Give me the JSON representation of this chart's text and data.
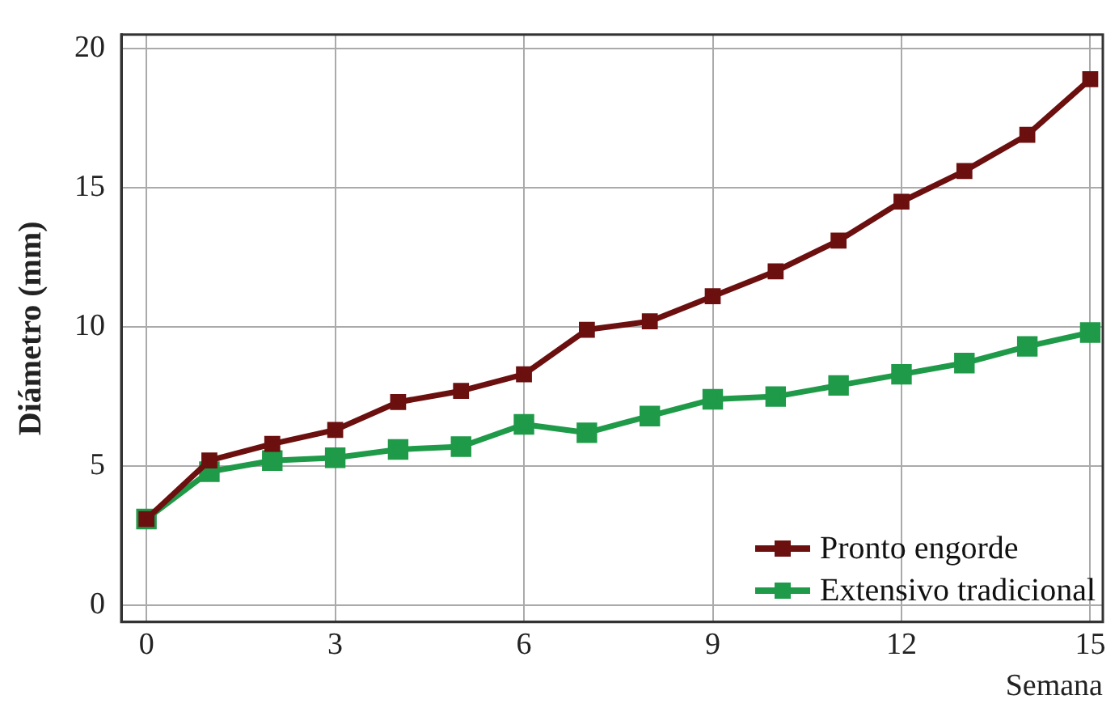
{
  "chart_data": {
    "type": "line",
    "xlabel": "Semana",
    "ylabel": "Diámetro (mm)",
    "x": [
      0,
      1,
      2,
      3,
      4,
      5,
      6,
      7,
      8,
      9,
      10,
      11,
      12,
      13,
      14,
      15
    ],
    "series": [
      {
        "name": "Pronto engorde",
        "color": "#6b0f0f",
        "values": [
          3.1,
          5.2,
          5.8,
          6.3,
          7.3,
          7.7,
          8.3,
          9.9,
          10.2,
          11.1,
          12.0,
          13.1,
          14.5,
          15.6,
          16.9,
          18.9
        ]
      },
      {
        "name": "Extensivo tradicional",
        "color": "#1e9a48",
        "values": [
          3.1,
          4.8,
          5.2,
          5.3,
          5.6,
          5.7,
          6.5,
          6.2,
          6.8,
          7.4,
          7.5,
          7.9,
          8.3,
          8.7,
          9.3,
          9.8
        ]
      }
    ],
    "xlim": [
      -0.4,
      15.2
    ],
    "xticks": [
      0,
      3,
      6,
      9,
      12,
      15
    ],
    "ylim": [
      -0.6,
      20.5
    ],
    "yticks": [
      0,
      5,
      10,
      15,
      20
    ],
    "grid": true,
    "legend": "bottom right",
    "marker": "square",
    "line_style": "solid"
  }
}
